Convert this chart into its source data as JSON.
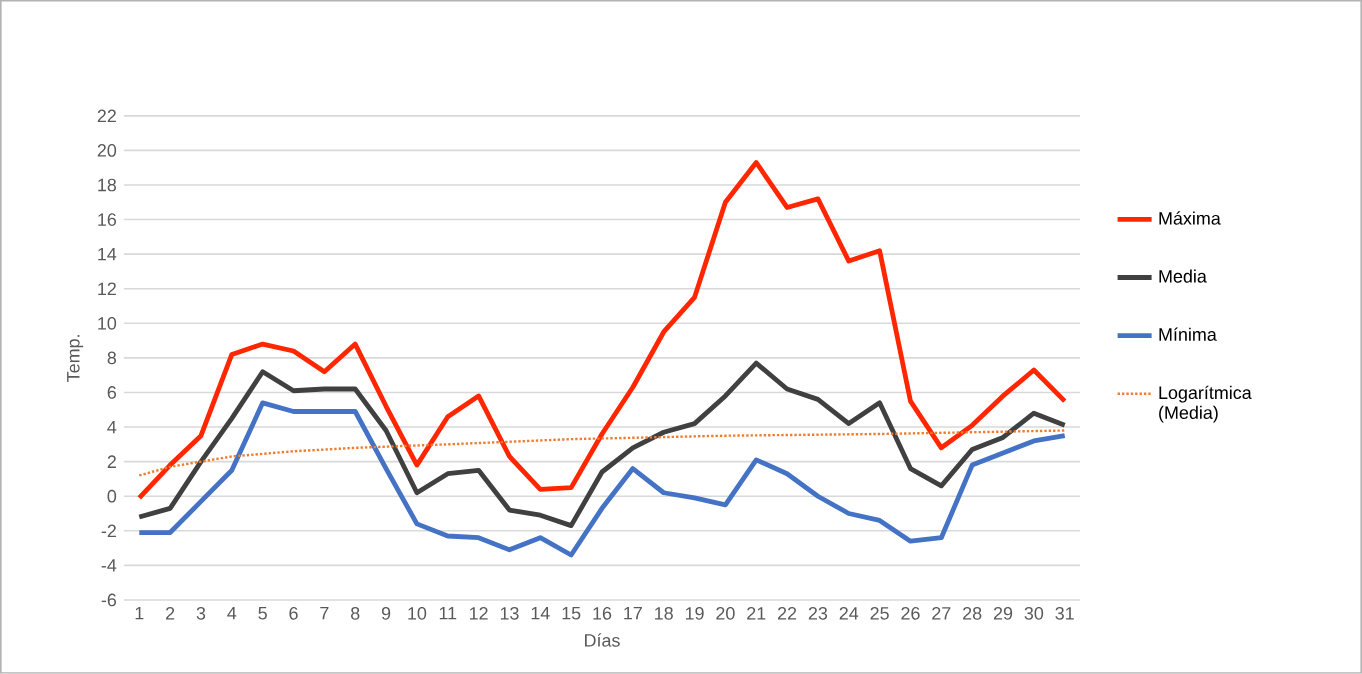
{
  "chart_data": {
    "type": "line",
    "xlabel": "Días",
    "ylabel": "Temp.",
    "categories": [
      "1",
      "2",
      "3",
      "4",
      "5",
      "6",
      "7",
      "8",
      "9",
      "10",
      "11",
      "12",
      "13",
      "14",
      "15",
      "16",
      "17",
      "18",
      "19",
      "20",
      "21",
      "22",
      "23",
      "24",
      "25",
      "26",
      "27",
      "28",
      "29",
      "30",
      "31"
    ],
    "series": [
      {
        "name": "Máxima",
        "color": "#ff2600",
        "values": [
          -0.1,
          1.8,
          3.5,
          8.2,
          8.8,
          8.4,
          7.2,
          8.8,
          5.2,
          1.8,
          4.6,
          5.8,
          2.3,
          0.4,
          0.5,
          3.6,
          6.3,
          9.5,
          11.5,
          17,
          19.3,
          16.7,
          17.2,
          13.6,
          14.2,
          5.5,
          2.8,
          4.1,
          5.8,
          7.3,
          5.5
        ]
      },
      {
        "name": "Media",
        "color": "#404040",
        "values": [
          -1.2,
          -0.7,
          2,
          4.5,
          7.2,
          6.1,
          6.2,
          6.2,
          3.8,
          0.2,
          1.3,
          1.5,
          -0.8,
          -1.1,
          -1.7,
          1.4,
          2.8,
          3.7,
          4.2,
          5.8,
          7.7,
          6.2,
          5.6,
          4.2,
          5.4,
          1.6,
          0.6,
          2.7,
          3.4,
          4.8,
          4.1
        ]
      },
      {
        "name": "Mínima",
        "color": "#4472c4",
        "values": [
          -2.1,
          -2.1,
          -0.3,
          1.5,
          5.4,
          4.9,
          4.9,
          4.9,
          1.6,
          -1.6,
          -2.3,
          -2.4,
          -3.1,
          -2.4,
          -3.4,
          -0.7,
          1.6,
          0.2,
          -0.1,
          -0.5,
          2.1,
          1.3,
          0,
          -1,
          -1.4,
          -2.6,
          -2.4,
          1.8,
          2.5,
          3.2,
          3.5
        ]
      },
      {
        "name": "Logarítmica (Media)",
        "color": "#ed7d31",
        "line_style": "dotted",
        "x": [
          "1",
          "2",
          "3",
          "4",
          "6",
          "8",
          "11",
          "15",
          "20",
          "25",
          "31"
        ],
        "values": [
          1.2,
          1.7,
          2,
          2.3,
          2.6,
          2.8,
          3,
          3.3,
          3.5,
          3.6,
          3.8
        ]
      }
    ],
    "ylim": [
      -6,
      22
    ],
    "yticks": [
      -6,
      -4,
      -2,
      0,
      2,
      4,
      6,
      8,
      10,
      12,
      14,
      16,
      18,
      20,
      22
    ],
    "grid": "y",
    "legend": "right",
    "marker": "none",
    "line_style": "solid"
  }
}
